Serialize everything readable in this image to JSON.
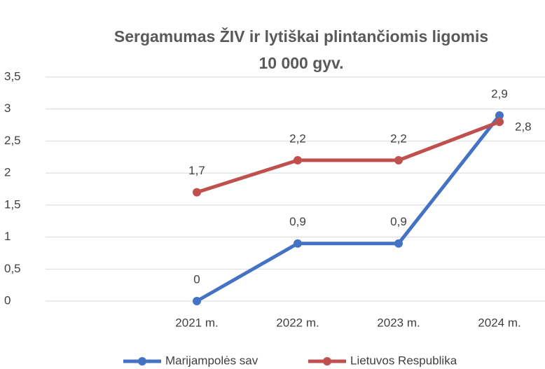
{
  "chart_data": {
    "type": "line",
    "title": [
      "Sergamumas ŽIV ir lytiškai plintančiomis ligomis",
      "10 000 gyv."
    ],
    "categories": [
      null,
      "2021 m.",
      "2022 m.",
      "2023 m.",
      "2024 m."
    ],
    "series": [
      {
        "name": "Marijampolės sav",
        "color": "#4472c4",
        "values": [
          null,
          0,
          0.9,
          0.9,
          2.9
        ],
        "value_labels": [
          null,
          "0",
          "0,9",
          "0,9",
          "2,9"
        ]
      },
      {
        "name": "Lietuvos Respublika",
        "color": "#c0504d",
        "values": [
          null,
          1.7,
          2.2,
          2.2,
          2.8
        ],
        "value_labels": [
          null,
          "1,7",
          "2,2",
          "2,2",
          "2,8"
        ]
      }
    ],
    "ylim": [
      0,
      3.5
    ],
    "yticks": [
      0,
      {
        "value": 0.5,
        "label": "0,5"
      },
      1,
      {
        "value": 1.5,
        "label": "1,5"
      },
      2,
      {
        "value": 2.5,
        "label": "2,5"
      },
      3,
      {
        "value": 3.5,
        "label": "3,5"
      }
    ],
    "grid": true,
    "legend": "bottom"
  }
}
